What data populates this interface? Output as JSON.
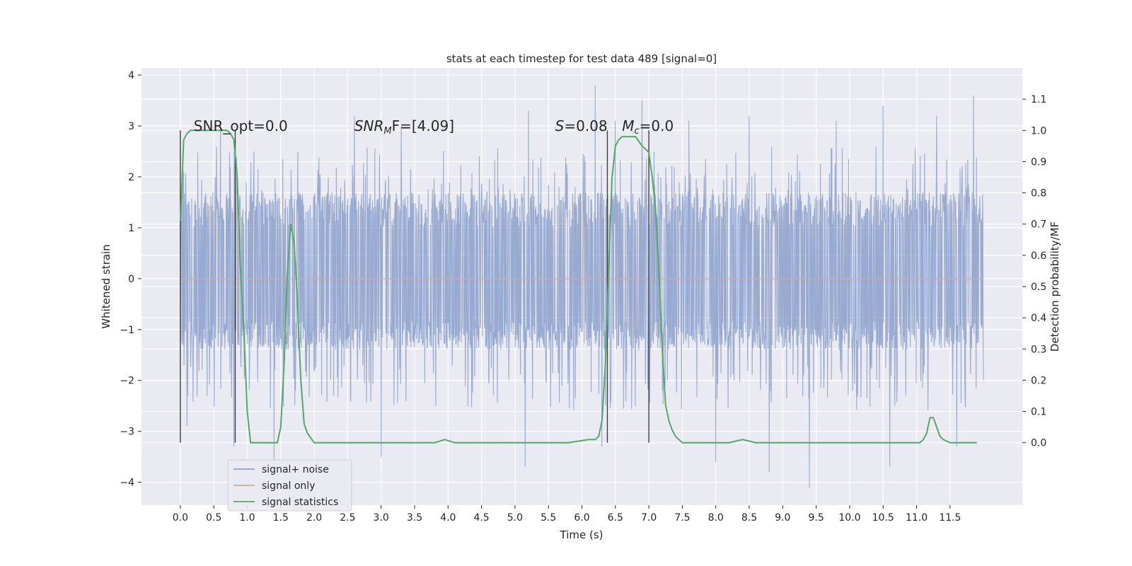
{
  "chart_data": {
    "type": "line",
    "title": "stats at each timestep for test data 489 [signal=0]",
    "xlabel": "Time (s)",
    "ylabel": "Whitened strain",
    "y2label": "Detection probability/MF",
    "xlim": [
      -0.58,
      12.58
    ],
    "ylim": [
      -4.45,
      4.14
    ],
    "y2lim": [
      -0.2,
      1.2
    ],
    "xticks": [
      0.0,
      0.5,
      1.0,
      1.5,
      2.0,
      2.5,
      3.0,
      3.5,
      4.0,
      4.5,
      5.0,
      5.5,
      6.0,
      6.5,
      7.0,
      7.5,
      8.0,
      8.5,
      9.0,
      9.5,
      10.0,
      10.5,
      11.0,
      11.5
    ],
    "xtick_labels": [
      "0.0",
      "0.5",
      "1.0",
      "1.5",
      "2.0",
      "2.5",
      "3.0",
      "3.5",
      "4.0",
      "4.5",
      "5.0",
      "5.5",
      "6.0",
      "6.5",
      "7.0",
      "7.5",
      "8.0",
      "8.5",
      "9.0",
      "9.5",
      "10.0",
      "10.5",
      "11.0",
      "11.5"
    ],
    "yticks": [
      -4,
      -3,
      -2,
      -1,
      0,
      1,
      2,
      3,
      4
    ],
    "ytick_labels": [
      "−4",
      "−3",
      "−2",
      "−1",
      "0",
      "1",
      "2",
      "3",
      "4"
    ],
    "y2ticks": [
      0.0,
      0.1,
      0.2,
      0.3,
      0.4,
      0.5,
      0.6,
      0.7,
      0.8,
      0.9,
      1.0,
      1.1
    ],
    "y2tick_labels": [
      "0.0",
      "0.1",
      "0.2",
      "0.3",
      "0.4",
      "0.5",
      "0.6",
      "0.7",
      "0.8",
      "0.9",
      "1.0",
      "1.1"
    ],
    "grid": true,
    "legend_position": "lower-left",
    "series": [
      {
        "name": "signal+ noise",
        "color": "#8fa3cc",
        "x_range": [
          0.0,
          12.0
        ],
        "band_typical": [
          -1.4,
          1.7
        ],
        "peaks_high": [
          [
            0.05,
            2.1
          ],
          [
            0.6,
            3.1
          ],
          [
            1.1,
            2.5
          ],
          [
            2.6,
            3.2
          ],
          [
            3.3,
            3.0
          ],
          [
            5.2,
            3.3
          ],
          [
            6.2,
            3.8
          ],
          [
            6.5,
            3.1
          ],
          [
            6.9,
            3.5
          ],
          [
            7.6,
            3.1
          ],
          [
            8.5,
            3.2
          ],
          [
            9.8,
            3.1
          ],
          [
            10.5,
            3.4
          ],
          [
            11.3,
            3.2
          ],
          [
            11.85,
            3.6
          ]
        ],
        "peaks_low": [
          [
            0.1,
            -2.9
          ],
          [
            0.8,
            -3.3
          ],
          [
            1.4,
            -3.7
          ],
          [
            3.0,
            -3.5
          ],
          [
            5.15,
            -3.7
          ],
          [
            6.3,
            -3.3
          ],
          [
            8.0,
            -3.6
          ],
          [
            8.8,
            -3.8
          ],
          [
            9.4,
            -4.1
          ],
          [
            10.6,
            -3.7
          ],
          [
            11.6,
            -3.3
          ]
        ]
      },
      {
        "name": "signal only",
        "color": "#e1a78d",
        "x": [
          0.0,
          12.0
        ],
        "y": [
          0.0,
          0.0
        ]
      },
      {
        "name": "signal statistics",
        "color": "#55a868",
        "axis": "right",
        "x": [
          0.0,
          0.02,
          0.05,
          0.1,
          0.15,
          0.2,
          0.3,
          0.5,
          0.7,
          0.75,
          0.8,
          0.85,
          0.9,
          0.95,
          1.0,
          1.05,
          1.1,
          1.2,
          1.3,
          1.4,
          1.45,
          1.5,
          1.55,
          1.6,
          1.65,
          1.7,
          1.75,
          1.8,
          1.85,
          1.9,
          2.0,
          2.2,
          2.4,
          2.6,
          3.0,
          3.5,
          3.8,
          3.95,
          4.1,
          4.5,
          5.0,
          5.5,
          5.8,
          6.1,
          6.2,
          6.25,
          6.3,
          6.35,
          6.4,
          6.45,
          6.5,
          6.55,
          6.6,
          6.7,
          6.8,
          6.9,
          7.0,
          7.05,
          7.1,
          7.15,
          7.2,
          7.25,
          7.3,
          7.35,
          7.4,
          7.5,
          7.8,
          8.0,
          8.2,
          8.4,
          8.6,
          9.0,
          9.5,
          9.8,
          10.0,
          10.5,
          11.0,
          11.05,
          11.1,
          11.15,
          11.2,
          11.25,
          11.3,
          11.35,
          11.4,
          11.5,
          11.7,
          11.9
        ],
        "y": [
          0.71,
          0.8,
          0.97,
          0.99,
          1.0,
          1.0,
          1.0,
          1.0,
          1.0,
          0.99,
          0.97,
          0.85,
          0.55,
          0.35,
          0.1,
          0.0,
          0.0,
          0.0,
          0.0,
          0.0,
          0.0,
          0.05,
          0.25,
          0.55,
          0.7,
          0.64,
          0.45,
          0.2,
          0.06,
          0.03,
          0.0,
          0.0,
          0.0,
          0.0,
          0.0,
          0.0,
          0.0,
          0.01,
          0.0,
          0.0,
          0.0,
          0.0,
          0.0,
          0.01,
          0.01,
          0.02,
          0.07,
          0.25,
          0.55,
          0.85,
          0.95,
          0.97,
          0.98,
          0.98,
          0.98,
          0.95,
          0.93,
          0.85,
          0.75,
          0.55,
          0.3,
          0.12,
          0.07,
          0.04,
          0.02,
          0.0,
          0.0,
          0.0,
          0.0,
          0.01,
          0.0,
          0.0,
          0.0,
          0.0,
          0.0,
          0.0,
          0.0,
          0.0,
          0.01,
          0.03,
          0.08,
          0.08,
          0.05,
          0.02,
          0.01,
          0.0,
          0.0,
          0.0
        ]
      }
    ],
    "vlines": [
      0.0,
      0.82,
      6.38,
      7.0
    ],
    "annotations": [
      {
        "text": "SNR_opt=0.0",
        "x": 0.2,
        "y": 3.0
      },
      {
        "text": "SNR",
        "sub": "M",
        "tail": "F=[4.09]",
        "x": 2.6,
        "y": 3.0
      },
      {
        "text": "S",
        "tail": "=0.08",
        "x": 5.6,
        "y": 3.0
      },
      {
        "text": "M",
        "sub": "c",
        "tail": "=0.0",
        "x": 6.6,
        "y": 3.0
      }
    ]
  }
}
